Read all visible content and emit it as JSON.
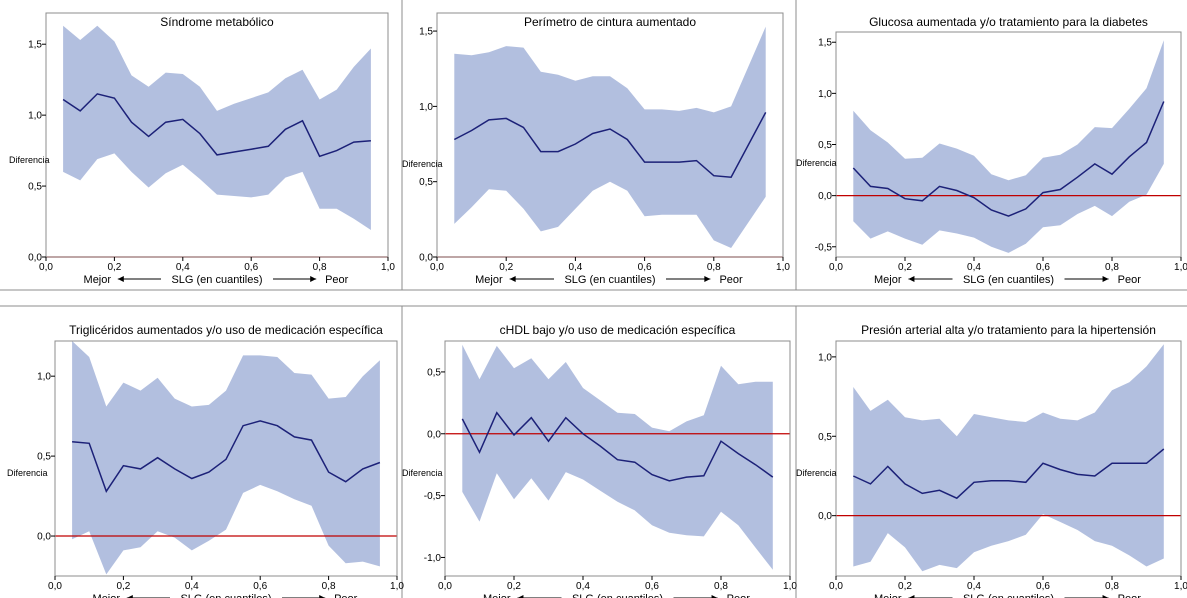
{
  "figure": {
    "colors": {
      "band": "#b2bfdf",
      "line": "#1c2178",
      "reference": "#c00000",
      "frame": "#8c8c8c"
    },
    "ylabel": "Diferencia",
    "xlabel": {
      "left": "Mejor",
      "center": "SLG (en cuantiles)",
      "right": "Peor"
    },
    "xtick_labels": [
      "0,0",
      "0,2",
      "0,4",
      "0,6",
      "0,8",
      "1,0"
    ]
  },
  "chart_data": [
    {
      "type": "line",
      "title": "Síndrome metabólico",
      "xlim": [
        0,
        1
      ],
      "ylim": [
        0,
        1.72
      ],
      "yticks": [
        0,
        0.5,
        1.0,
        1.5
      ],
      "ytick_labels": [
        "0,0",
        "0,5",
        "1,0",
        "1,5"
      ],
      "reference_line": 0,
      "x": [
        0.05,
        0.1,
        0.15,
        0.2,
        0.25,
        0.3,
        0.35,
        0.4,
        0.45,
        0.5,
        0.55,
        0.6,
        0.65,
        0.7,
        0.75,
        0.8,
        0.85,
        0.9,
        0.95
      ],
      "series": [
        {
          "values": [
            1.11,
            1.03,
            1.15,
            1.12,
            0.95,
            0.85,
            0.95,
            0.97,
            0.87,
            0.72,
            0.74,
            0.76,
            0.78,
            0.9,
            0.96,
            0.71,
            0.75,
            0.81,
            0.82
          ]
        },
        {
          "values": [
            0.6,
            0.54,
            0.69,
            0.73,
            0.6,
            0.49,
            0.59,
            0.65,
            0.55,
            0.44,
            0.43,
            0.42,
            0.44,
            0.56,
            0.6,
            0.34,
            0.34,
            0.27,
            0.19
          ]
        },
        {
          "values": [
            1.63,
            1.53,
            1.63,
            1.52,
            1.28,
            1.2,
            1.3,
            1.29,
            1.2,
            1.03,
            1.08,
            1.12,
            1.16,
            1.26,
            1.32,
            1.11,
            1.18,
            1.34,
            1.47
          ]
        }
      ]
    },
    {
      "type": "line",
      "title": "Perímetro de cintura aumentado",
      "xlim": [
        0,
        1
      ],
      "ylim": [
        0,
        1.62
      ],
      "yticks": [
        0,
        0.5,
        1.0,
        1.5
      ],
      "ytick_labels": [
        "0,0",
        "0,5",
        "1,0",
        "1,5"
      ],
      "reference_line": 0,
      "x": [
        0.05,
        0.1,
        0.15,
        0.2,
        0.25,
        0.3,
        0.35,
        0.4,
        0.45,
        0.5,
        0.55,
        0.6,
        0.65,
        0.7,
        0.75,
        0.8,
        0.85,
        0.95
      ],
      "series": [
        {
          "values": [
            0.78,
            0.84,
            0.91,
            0.92,
            0.86,
            0.7,
            0.7,
            0.75,
            0.82,
            0.85,
            0.78,
            0.63,
            0.63,
            0.63,
            0.64,
            0.54,
            0.53,
            0.96
          ]
        },
        {
          "values": [
            0.22,
            0.33,
            0.45,
            0.44,
            0.32,
            0.17,
            0.2,
            0.32,
            0.44,
            0.5,
            0.44,
            0.27,
            0.28,
            0.28,
            0.28,
            0.11,
            0.06,
            0.4
          ]
        },
        {
          "values": [
            1.35,
            1.34,
            1.36,
            1.4,
            1.39,
            1.23,
            1.21,
            1.17,
            1.2,
            1.2,
            1.12,
            0.98,
            0.98,
            0.97,
            0.99,
            0.96,
            1.0,
            1.53
          ]
        }
      ]
    },
    {
      "type": "line",
      "title": "Glucosa aumentada y/o tratamiento para la diabetes",
      "xlim": [
        0,
        1
      ],
      "ylim": [
        -0.6,
        1.6
      ],
      "yticks": [
        -0.5,
        0,
        0.5,
        1.0,
        1.5
      ],
      "ytick_labels": [
        "-0,5",
        "0,0",
        "0,5",
        "1,0",
        "1,5"
      ],
      "reference_line": 0,
      "x": [
        0.05,
        0.1,
        0.15,
        0.2,
        0.25,
        0.3,
        0.35,
        0.4,
        0.45,
        0.5,
        0.55,
        0.6,
        0.65,
        0.7,
        0.75,
        0.8,
        0.85,
        0.9,
        0.95
      ],
      "series": [
        {
          "values": [
            0.27,
            0.09,
            0.07,
            -0.03,
            -0.05,
            0.09,
            0.05,
            -0.02,
            -0.14,
            -0.2,
            -0.13,
            0.03,
            0.06,
            0.18,
            0.31,
            0.21,
            0.38,
            0.52,
            0.92
          ]
        },
        {
          "values": [
            -0.25,
            -0.42,
            -0.35,
            -0.42,
            -0.48,
            -0.34,
            -0.37,
            -0.41,
            -0.5,
            -0.56,
            -0.47,
            -0.31,
            -0.29,
            -0.18,
            -0.1,
            -0.2,
            -0.06,
            0.01,
            0.31
          ]
        },
        {
          "values": [
            0.83,
            0.64,
            0.52,
            0.36,
            0.37,
            0.51,
            0.46,
            0.39,
            0.21,
            0.15,
            0.2,
            0.37,
            0.4,
            0.5,
            0.67,
            0.66,
            0.85,
            1.05,
            1.52
          ]
        }
      ]
    },
    {
      "type": "line",
      "title": "Triglicéridos aumentados y/o uso de medicación específica",
      "xlim": [
        0,
        1
      ],
      "ylim": [
        -0.25,
        1.22
      ],
      "yticks": [
        0,
        0.5,
        1.0
      ],
      "ytick_labels": [
        "0,0",
        "0,5",
        "1,0"
      ],
      "reference_line": 0,
      "x": [
        0.05,
        0.1,
        0.15,
        0.2,
        0.25,
        0.3,
        0.35,
        0.4,
        0.45,
        0.5,
        0.55,
        0.6,
        0.65,
        0.7,
        0.75,
        0.8,
        0.85,
        0.9,
        0.95
      ],
      "series": [
        {
          "values": [
            0.59,
            0.58,
            0.28,
            0.44,
            0.42,
            0.49,
            0.42,
            0.36,
            0.4,
            0.48,
            0.69,
            0.72,
            0.69,
            0.62,
            0.6,
            0.4,
            0.34,
            0.42,
            0.46
          ]
        },
        {
          "values": [
            -0.02,
            0.03,
            -0.24,
            -0.09,
            -0.07,
            0.03,
            -0.01,
            -0.09,
            -0.03,
            0.04,
            0.27,
            0.32,
            0.28,
            0.23,
            0.19,
            -0.06,
            -0.17,
            -0.16,
            -0.19
          ]
        },
        {
          "values": [
            1.22,
            1.12,
            0.81,
            0.96,
            0.91,
            0.99,
            0.86,
            0.81,
            0.82,
            0.91,
            1.13,
            1.13,
            1.12,
            1.02,
            1.01,
            0.86,
            0.87,
            1.0,
            1.1
          ]
        }
      ]
    },
    {
      "type": "line",
      "title": "cHDL bajo y/o uso de medicación específica",
      "xlim": [
        0,
        1
      ],
      "ylim": [
        -1.15,
        0.75
      ],
      "yticks": [
        -1.0,
        -0.5,
        0,
        0.5
      ],
      "ytick_labels": [
        "-1,0",
        "-0,5",
        "0,0",
        "0,5"
      ],
      "reference_line": 0,
      "x": [
        0.05,
        0.1,
        0.15,
        0.2,
        0.25,
        0.3,
        0.35,
        0.4,
        0.45,
        0.5,
        0.55,
        0.6,
        0.65,
        0.7,
        0.75,
        0.8,
        0.85,
        0.9,
        0.95
      ],
      "series": [
        {
          "values": [
            0.12,
            -0.15,
            0.17,
            -0.01,
            0.13,
            -0.06,
            0.13,
            0.0,
            -0.1,
            -0.21,
            -0.23,
            -0.33,
            -0.38,
            -0.35,
            -0.34,
            -0.06,
            -0.16,
            -0.25,
            -0.35
          ]
        },
        {
          "values": [
            -0.47,
            -0.71,
            -0.32,
            -0.53,
            -0.36,
            -0.54,
            -0.31,
            -0.37,
            -0.46,
            -0.55,
            -0.62,
            -0.74,
            -0.8,
            -0.82,
            -0.83,
            -0.63,
            -0.74,
            -0.92,
            -1.1
          ]
        },
        {
          "values": [
            0.72,
            0.44,
            0.71,
            0.53,
            0.61,
            0.44,
            0.58,
            0.37,
            0.27,
            0.17,
            0.16,
            0.05,
            0.02,
            0.1,
            0.15,
            0.55,
            0.4,
            0.42,
            0.42
          ]
        }
      ]
    },
    {
      "type": "line",
      "title": "Presión arterial alta y/o tratamiento para la hipertensión",
      "xlim": [
        0,
        1
      ],
      "ylim": [
        -0.38,
        1.1
      ],
      "yticks": [
        0,
        0.5,
        1.0
      ],
      "ytick_labels": [
        "0,0",
        "0,5",
        "1,0"
      ],
      "reference_line": 0,
      "x": [
        0.05,
        0.1,
        0.15,
        0.2,
        0.25,
        0.3,
        0.35,
        0.4,
        0.45,
        0.5,
        0.55,
        0.6,
        0.65,
        0.7,
        0.75,
        0.8,
        0.85,
        0.9,
        0.95
      ],
      "series": [
        {
          "values": [
            0.25,
            0.2,
            0.31,
            0.2,
            0.14,
            0.16,
            0.11,
            0.21,
            0.22,
            0.22,
            0.21,
            0.33,
            0.29,
            0.26,
            0.25,
            0.33,
            0.33,
            0.33,
            0.42
          ]
        },
        {
          "values": [
            -0.32,
            -0.29,
            -0.11,
            -0.2,
            -0.35,
            -0.31,
            -0.33,
            -0.23,
            -0.19,
            -0.16,
            -0.12,
            0.01,
            -0.04,
            -0.09,
            -0.16,
            -0.19,
            -0.25,
            -0.32,
            -0.27
          ]
        },
        {
          "values": [
            0.81,
            0.66,
            0.73,
            0.62,
            0.6,
            0.61,
            0.5,
            0.64,
            0.62,
            0.6,
            0.59,
            0.65,
            0.61,
            0.6,
            0.65,
            0.79,
            0.84,
            0.94,
            1.08
          ]
        }
      ]
    }
  ]
}
